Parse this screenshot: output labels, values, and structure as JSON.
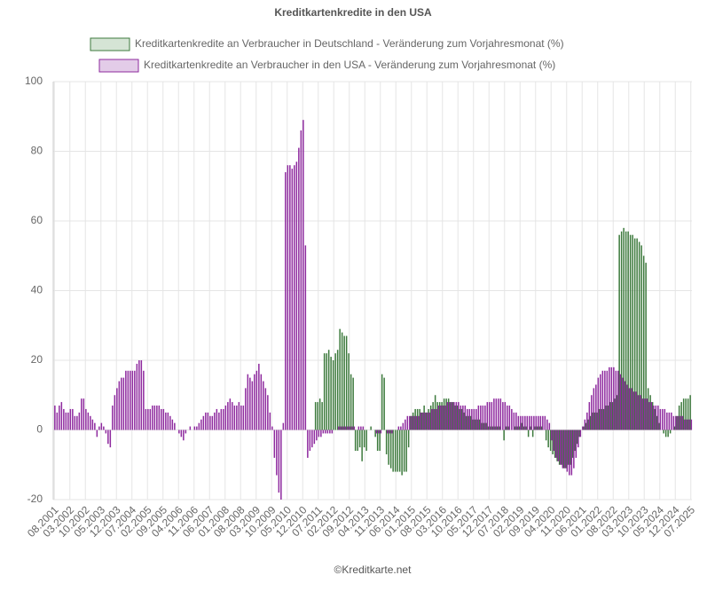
{
  "chart_data": {
    "type": "bar",
    "title": "Kreditkartenkredite in den USA",
    "source": "©Kreditkarte.net",
    "categories": [
      "08.2001",
      null,
      null,
      null,
      null,
      null,
      null,
      "03.2002",
      null,
      null,
      null,
      null,
      null,
      null,
      "10.2002",
      null,
      null,
      null,
      null,
      null,
      null,
      "05.2003",
      null,
      null,
      null,
      null,
      null,
      null,
      "12.2003",
      null,
      null,
      null,
      null,
      null,
      null,
      "07.2004",
      null,
      null,
      null,
      null,
      null,
      null,
      "02.2005",
      null,
      null,
      null,
      null,
      null,
      null,
      "09.2005",
      null,
      null,
      null,
      null,
      null,
      null,
      "04.2006",
      null,
      null,
      null,
      null,
      null,
      null,
      "11.2006",
      null,
      null,
      null,
      null,
      null,
      null,
      "06.2007",
      null,
      null,
      null,
      null,
      null,
      null,
      "01.2008",
      null,
      null,
      null,
      null,
      null,
      null,
      "08.2008",
      null,
      null,
      null,
      null,
      null,
      null,
      "03.2009",
      null,
      null,
      null,
      null,
      null,
      null,
      "10.2009",
      null,
      null,
      null,
      null,
      null,
      null,
      "05.2010",
      null,
      null,
      null,
      null,
      null,
      null,
      "12.2010",
      null,
      null,
      null,
      null,
      null,
      null,
      "07.2011",
      null,
      null,
      null,
      null,
      null,
      null,
      "02.2012",
      null,
      null,
      null,
      null,
      null,
      null,
      "09.2012",
      null,
      null,
      null,
      null,
      null,
      null,
      "04.2013",
      null,
      null,
      null,
      null,
      null,
      null,
      "11.2013",
      null,
      null,
      null,
      null,
      null,
      null,
      "06.2014",
      null,
      null,
      null,
      null,
      null,
      null,
      "01.2015",
      null,
      null,
      null,
      null,
      null,
      null,
      "08.2015",
      null,
      null,
      null,
      null,
      null,
      null,
      "03.2016",
      null,
      null,
      null,
      null,
      null,
      null,
      "10.2016",
      null,
      null,
      null,
      null,
      null,
      null,
      "05.2017",
      null,
      null,
      null,
      null,
      null,
      null,
      "12.2017",
      null,
      null,
      null,
      null,
      null,
      null,
      "07.2018",
      null,
      null,
      null,
      null,
      null,
      null,
      "02.2019",
      null,
      null,
      null,
      null,
      null,
      null,
      "09.2019",
      null,
      null,
      null,
      null,
      null,
      null,
      "04.2020",
      null,
      null,
      null,
      null,
      null,
      null,
      "11.2020",
      null,
      null,
      null,
      null,
      null,
      null,
      "06.2021",
      null,
      null,
      null,
      null,
      null,
      null,
      "01.2022",
      null,
      null,
      null,
      null,
      null,
      null,
      "08.2022",
      null,
      null,
      null,
      null,
      null,
      null,
      "03.2023",
      null,
      null,
      null,
      null,
      null,
      null,
      "10.2023",
      null,
      null,
      null,
      null,
      null,
      null,
      "05.2024",
      null,
      null,
      null,
      null,
      null,
      null,
      "12.2024",
      null,
      null,
      null,
      null,
      null,
      null,
      "07.2025"
    ],
    "series": [
      {
        "name": "Kreditkartenkredite an Verbraucher in Deutschland - Veränderung zum Vorjahresmonat (%)",
        "color": "#3d7a3d",
        "legend_fill": "#d5e4d5",
        "values": [
          null,
          null,
          null,
          null,
          null,
          null,
          null,
          null,
          null,
          null,
          null,
          null,
          null,
          null,
          null,
          null,
          null,
          null,
          null,
          null,
          null,
          null,
          null,
          null,
          null,
          null,
          null,
          null,
          null,
          null,
          null,
          null,
          null,
          null,
          null,
          null,
          null,
          null,
          null,
          null,
          null,
          null,
          null,
          null,
          null,
          null,
          null,
          null,
          null,
          null,
          null,
          null,
          null,
          null,
          null,
          null,
          null,
          null,
          null,
          null,
          null,
          null,
          null,
          null,
          null,
          null,
          null,
          null,
          null,
          null,
          null,
          null,
          null,
          null,
          null,
          null,
          null,
          null,
          null,
          null,
          null,
          null,
          null,
          null,
          null,
          null,
          null,
          null,
          null,
          null,
          null,
          null,
          null,
          null,
          null,
          null,
          null,
          null,
          null,
          null,
          null,
          null,
          null,
          null,
          null,
          null,
          null,
          null,
          null,
          null,
          null,
          null,
          null,
          null,
          null,
          null,
          null,
          null,
          8,
          8,
          9,
          8,
          22,
          22,
          23,
          21,
          20,
          22,
          23,
          29,
          28,
          27,
          27,
          22,
          16,
          15,
          -6,
          -6,
          -5,
          -9,
          -5,
          -6,
          0,
          1,
          0,
          -2,
          -6,
          -6,
          16,
          15,
          -7,
          -10,
          -11,
          -12,
          -12,
          -12,
          -12,
          -13,
          -12,
          -12,
          -5,
          4,
          5,
          6,
          6,
          6,
          5,
          7,
          5,
          6,
          7,
          8,
          10,
          8,
          8,
          8,
          9,
          9,
          9,
          8,
          8,
          7,
          7,
          6,
          6,
          5,
          4,
          4,
          4,
          3,
          3,
          3,
          3,
          2,
          2,
          2,
          1,
          1,
          1,
          1,
          1,
          1,
          0,
          -3,
          1,
          1,
          0,
          0,
          1,
          1,
          1,
          2,
          1,
          1,
          -2,
          1,
          -2,
          1,
          1,
          1,
          1,
          0,
          -3,
          -5,
          -6,
          -7,
          -8,
          -9,
          -10,
          -10,
          -11,
          -11,
          -10,
          -10,
          -8,
          -6,
          -4,
          -2,
          0,
          1,
          2,
          3,
          4,
          5,
          5,
          5,
          6,
          6,
          6,
          7,
          7,
          8,
          8,
          9,
          10,
          56,
          57,
          58,
          57,
          57,
          56,
          56,
          55,
          55,
          54,
          53,
          50,
          48,
          12,
          10,
          8,
          6,
          4,
          2,
          0,
          -1,
          -2,
          -2,
          -1,
          0,
          1,
          4,
          7,
          8,
          9,
          9,
          9,
          10
        ]
      },
      {
        "name": "Kreditkartenkredite an Verbraucher in den USA - Veränderung zum Vorjahresmonat (%)",
        "color": "#8e2a9e",
        "legend_fill": "#e3cce8",
        "values": [
          7,
          5,
          7,
          8,
          6,
          5,
          5,
          6,
          6,
          4,
          4,
          5,
          9,
          9,
          6,
          5,
          4,
          3,
          2,
          -2,
          1,
          2,
          1,
          -1,
          -4,
          -5,
          7,
          10,
          12,
          14,
          15,
          15,
          17,
          17,
          17,
          17,
          17,
          19,
          20,
          20,
          17,
          6,
          6,
          6,
          7,
          7,
          7,
          7,
          6,
          6,
          5,
          5,
          4,
          3,
          2,
          0,
          -1,
          -2,
          -3,
          -1,
          0,
          1,
          0,
          1,
          1,
          2,
          3,
          4,
          5,
          5,
          4,
          4,
          5,
          6,
          5,
          6,
          6,
          7,
          8,
          9,
          8,
          7,
          7,
          8,
          7,
          7,
          12,
          16,
          15,
          14,
          16,
          17,
          19,
          16,
          14,
          12,
          10,
          5,
          1,
          -8,
          -13,
          -18,
          -20,
          2,
          74,
          76,
          76,
          75,
          76,
          77,
          81,
          86,
          89,
          53,
          -8,
          -6,
          -5,
          -4,
          -3,
          -2,
          -2,
          -1,
          -1,
          -1,
          -1,
          -1,
          0,
          0,
          1,
          1,
          1,
          1,
          1,
          1,
          1,
          1,
          0,
          1,
          1,
          1,
          0,
          0,
          0,
          0,
          0,
          -1,
          -1,
          -1,
          0,
          0,
          -1,
          -1,
          -1,
          0,
          0,
          1,
          1,
          2,
          3,
          4,
          4,
          4,
          4,
          4,
          4,
          5,
          5,
          5,
          5,
          5,
          6,
          6,
          6,
          7,
          7,
          7,
          7,
          8,
          8,
          8,
          8,
          8,
          8,
          7,
          7,
          7,
          6,
          6,
          6,
          6,
          6,
          7,
          7,
          7,
          7,
          8,
          8,
          8,
          9,
          9,
          9,
          9,
          8,
          8,
          7,
          7,
          6,
          5,
          5,
          4,
          4,
          4,
          4,
          4,
          4,
          4,
          4,
          4,
          4,
          4,
          4,
          4,
          3,
          2,
          -3,
          -6,
          -8,
          -9,
          -10,
          -11,
          -11,
          -12,
          -13,
          -13,
          -11,
          -8,
          -5,
          -2,
          1,
          3,
          5,
          8,
          10,
          12,
          13,
          15,
          16,
          17,
          17,
          17,
          18,
          18,
          18,
          17,
          17,
          16,
          15,
          14,
          13,
          12,
          12,
          11,
          11,
          10,
          10,
          9,
          9,
          9,
          8,
          8,
          7,
          7,
          7,
          6,
          6,
          6,
          5,
          5,
          5,
          4,
          4,
          4,
          4,
          4,
          3,
          3,
          3,
          3
        ]
      }
    ],
    "ylim": [
      -20,
      100
    ],
    "yticks": [
      -20,
      0,
      20,
      40,
      60,
      80,
      100
    ],
    "grid": true
  }
}
